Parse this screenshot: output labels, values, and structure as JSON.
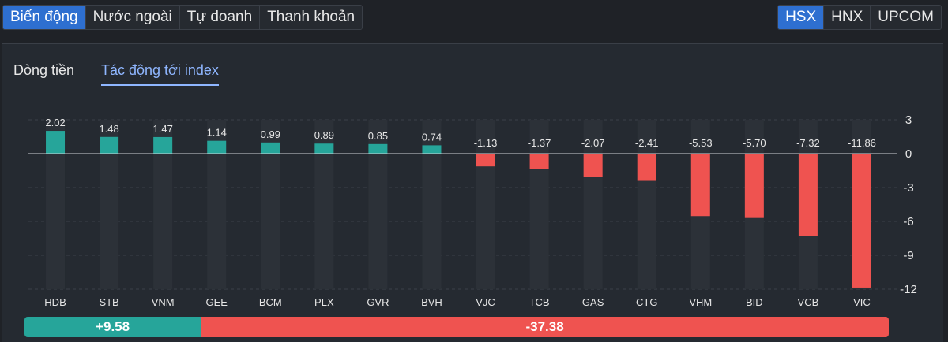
{
  "top_tabs": [
    {
      "label": "Biến động",
      "active": true
    },
    {
      "label": "Nước ngoài",
      "active": false
    },
    {
      "label": "Tự doanh",
      "active": false
    },
    {
      "label": "Thanh khoản",
      "active": false
    }
  ],
  "exchange_tabs": [
    {
      "label": "HSX",
      "active": true
    },
    {
      "label": "HNX",
      "active": false
    },
    {
      "label": "UPCOM",
      "active": false
    }
  ],
  "sub_tabs": {
    "flow": "Dòng tiền",
    "impact": "Tác động tới index"
  },
  "colors": {
    "positive": "#26a59a",
    "negative": "#ef5350",
    "accent": "#2e6fd0"
  },
  "summary": {
    "positive": "+9.58",
    "negative": "-37.38",
    "positive_value": 9.58,
    "negative_value": -37.38
  },
  "chart_data": {
    "type": "bar",
    "title": "",
    "xlabel": "",
    "ylabel": "",
    "ylim": [
      -12,
      3
    ],
    "yticks": [
      3,
      0,
      -3,
      -6,
      -9,
      -12
    ],
    "categories": [
      "HDB",
      "STB",
      "VNM",
      "GEE",
      "BCM",
      "PLX",
      "GVR",
      "BVH",
      "VJC",
      "TCB",
      "GAS",
      "CTG",
      "VHM",
      "BID",
      "VCB",
      "VIC"
    ],
    "values": [
      2.02,
      1.48,
      1.47,
      1.14,
      0.99,
      0.89,
      0.85,
      0.74,
      -1.13,
      -1.37,
      -2.07,
      -2.41,
      -5.53,
      -5.7,
      -7.32,
      -11.86
    ],
    "labels": [
      "2.02",
      "1.48",
      "1.47",
      "1.14",
      "0.99",
      "0.89",
      "0.85",
      "0.74",
      "-1.13",
      "-1.37",
      "-2.07",
      "-2.41",
      "-5.53",
      "-5.70",
      "-7.32",
      "-11.86"
    ]
  }
}
